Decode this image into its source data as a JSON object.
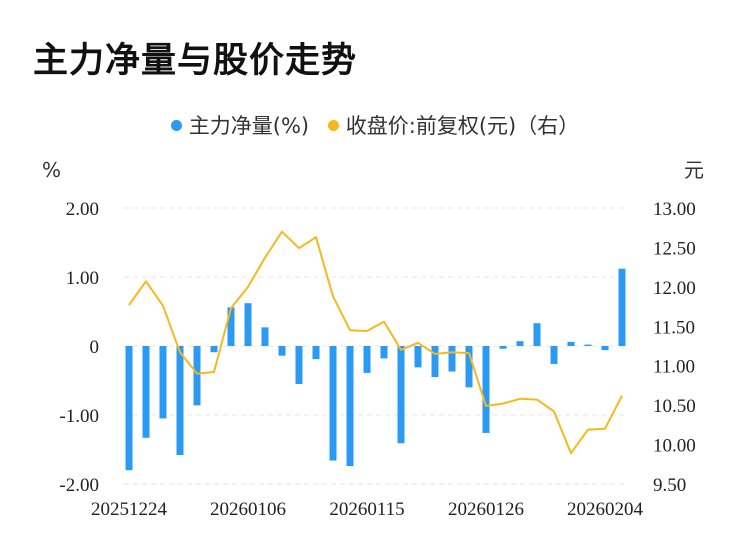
{
  "title": "主力净量与股价走势",
  "legend": {
    "series1": {
      "label": "主力净量(%)",
      "color": "#2b9af3"
    },
    "series2": {
      "label": "收盘价:前复权(元)（右）",
      "color": "#f5b91e"
    }
  },
  "chart_data": {
    "type": "bar+line",
    "left_unit": "%",
    "right_unit": "元",
    "left_ticks": [
      "2.00",
      "1.00",
      "0",
      "-1.00",
      "-2.00"
    ],
    "right_ticks": [
      "13.00",
      "12.50",
      "12.00",
      "11.50",
      "11.00",
      "10.50",
      "10.00",
      "9.50"
    ],
    "x_tick_labels": [
      "20251224",
      "20260106",
      "20260115",
      "20260126",
      "20260204"
    ],
    "x_tick_index": [
      0,
      7,
      14,
      21,
      28
    ],
    "ylim_left": [
      -2,
      2
    ],
    "ylim_right": [
      9.5,
      13
    ],
    "grid": "horizontal-dashed",
    "legend_position": "top-center",
    "series": [
      {
        "name": "主力净量(%)",
        "type": "bar",
        "values": [
          -1.8,
          -1.33,
          -1.05,
          -1.58,
          -0.86,
          -0.09,
          0.56,
          0.62,
          0.27,
          -0.14,
          -0.55,
          -0.19,
          -1.66,
          -1.74,
          -0.39,
          -0.18,
          -1.41,
          -0.31,
          -0.45,
          -0.37,
          -0.6,
          -1.26,
          -0.04,
          0.07,
          0.33,
          -0.26,
          0.06,
          0.02,
          -0.06,
          1.12
        ]
      },
      {
        "name": "收盘价:前复权(元)（右）",
        "type": "line",
        "values": [
          11.77,
          12.07,
          11.76,
          11.17,
          10.9,
          10.92,
          11.73,
          12.0,
          12.37,
          12.7,
          12.49,
          12.63,
          11.88,
          11.45,
          11.44,
          11.56,
          11.2,
          11.29,
          11.15,
          11.17,
          11.16,
          10.49,
          10.52,
          10.58,
          10.57,
          10.42,
          9.89,
          10.19,
          10.2,
          10.62
        ]
      }
    ]
  }
}
